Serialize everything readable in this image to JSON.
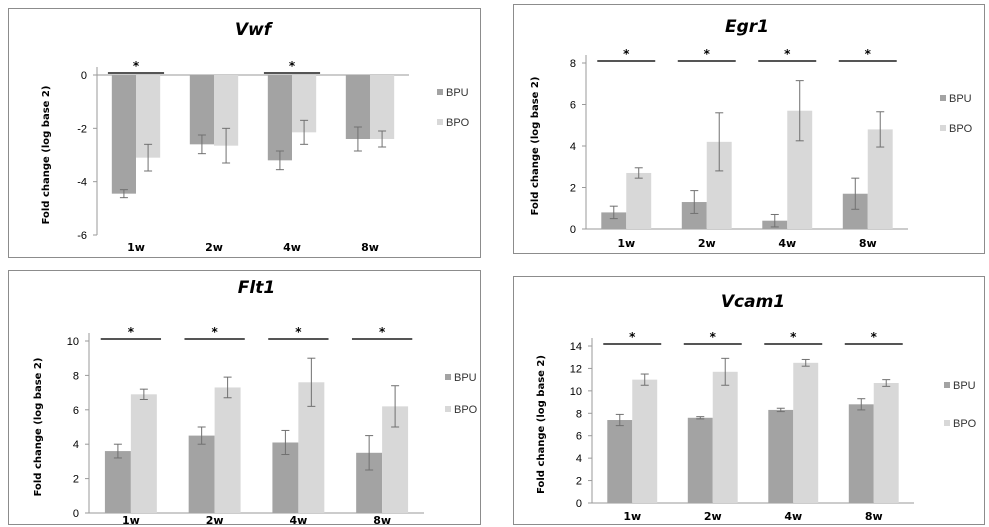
{
  "colors": {
    "BPU": "#a3a3a3",
    "BPO": "#d8d8d8",
    "axis": "#9a9a9a",
    "errorbar": "#707070",
    "sigline": "#555555"
  },
  "ylabel": "Fold change (log base 2)",
  "legend": [
    "BPU",
    "BPO"
  ],
  "chart_data": [
    {
      "type": "bar",
      "title": "Vwf",
      "ylabel": "Fold change (log base 2)",
      "categories": [
        "1w",
        "2w",
        "4w",
        "8w"
      ],
      "ylim": [
        -6,
        0
      ],
      "yticks": [
        0,
        -2,
        -4,
        -6
      ],
      "legend_position": "right",
      "series": [
        {
          "name": "BPU",
          "values": [
            -4.45,
            -2.6,
            -3.2,
            -2.4
          ],
          "errors": [
            0.15,
            0.35,
            0.35,
            0.45
          ]
        },
        {
          "name": "BPO",
          "values": [
            -3.1,
            -2.65,
            -2.15,
            -2.4
          ],
          "errors": [
            0.5,
            0.65,
            0.45,
            0.3
          ]
        }
      ],
      "significance": [
        {
          "category": "1w",
          "label": "*"
        },
        {
          "category": "4w",
          "label": "*"
        }
      ]
    },
    {
      "type": "bar",
      "title": "Egr1",
      "ylabel": "Fold change (log base 2)",
      "categories": [
        "1w",
        "2w",
        "4w",
        "8w"
      ],
      "ylim": [
        0,
        8
      ],
      "yticks": [
        0,
        2,
        4,
        6,
        8
      ],
      "legend_position": "right",
      "series": [
        {
          "name": "BPU",
          "values": [
            0.8,
            1.3,
            0.4,
            1.7
          ],
          "errors": [
            0.3,
            0.55,
            0.3,
            0.75
          ]
        },
        {
          "name": "BPO",
          "values": [
            2.7,
            4.2,
            5.7,
            4.8
          ],
          "errors": [
            0.25,
            1.4,
            1.45,
            0.85
          ]
        }
      ],
      "significance": [
        {
          "category": "1w",
          "label": "*"
        },
        {
          "category": "2w",
          "label": "*"
        },
        {
          "category": "4w",
          "label": "*"
        },
        {
          "category": "8w",
          "label": "*"
        }
      ]
    },
    {
      "type": "bar",
      "title": "Flt1",
      "ylabel": "Fold change (log base 2)",
      "categories": [
        "1w",
        "2w",
        "4w",
        "8w"
      ],
      "ylim": [
        0,
        10
      ],
      "yticks": [
        0,
        2,
        4,
        6,
        8,
        10
      ],
      "legend_position": "right",
      "series": [
        {
          "name": "BPU",
          "values": [
            3.6,
            4.5,
            4.1,
            3.5
          ],
          "errors": [
            0.4,
            0.5,
            0.7,
            1.0
          ]
        },
        {
          "name": "BPO",
          "values": [
            6.9,
            7.3,
            7.6,
            6.2
          ],
          "errors": [
            0.3,
            0.6,
            1.4,
            1.2
          ]
        }
      ],
      "significance": [
        {
          "category": "1w",
          "label": "*"
        },
        {
          "category": "2w",
          "label": "*"
        },
        {
          "category": "4w",
          "label": "*"
        },
        {
          "category": "8w",
          "label": "*"
        }
      ]
    },
    {
      "type": "bar",
      "title": "Vcam1",
      "ylabel": "Fold change (log base 2)",
      "categories": [
        "1w",
        "2w",
        "4w",
        "8w"
      ],
      "ylim": [
        0,
        14
      ],
      "yticks": [
        0,
        2,
        4,
        6,
        8,
        10,
        12,
        14
      ],
      "legend_position": "right",
      "series": [
        {
          "name": "BPU",
          "values": [
            7.4,
            7.6,
            8.3,
            8.8
          ],
          "errors": [
            0.5,
            0.1,
            0.15,
            0.5
          ]
        },
        {
          "name": "BPO",
          "values": [
            11.0,
            11.7,
            12.5,
            10.7
          ],
          "errors": [
            0.5,
            1.2,
            0.3,
            0.3
          ]
        }
      ],
      "significance": [
        {
          "category": "1w",
          "label": "*"
        },
        {
          "category": "2w",
          "label": "*"
        },
        {
          "category": "4w",
          "label": "*"
        },
        {
          "category": "8w",
          "label": "*"
        }
      ]
    }
  ]
}
